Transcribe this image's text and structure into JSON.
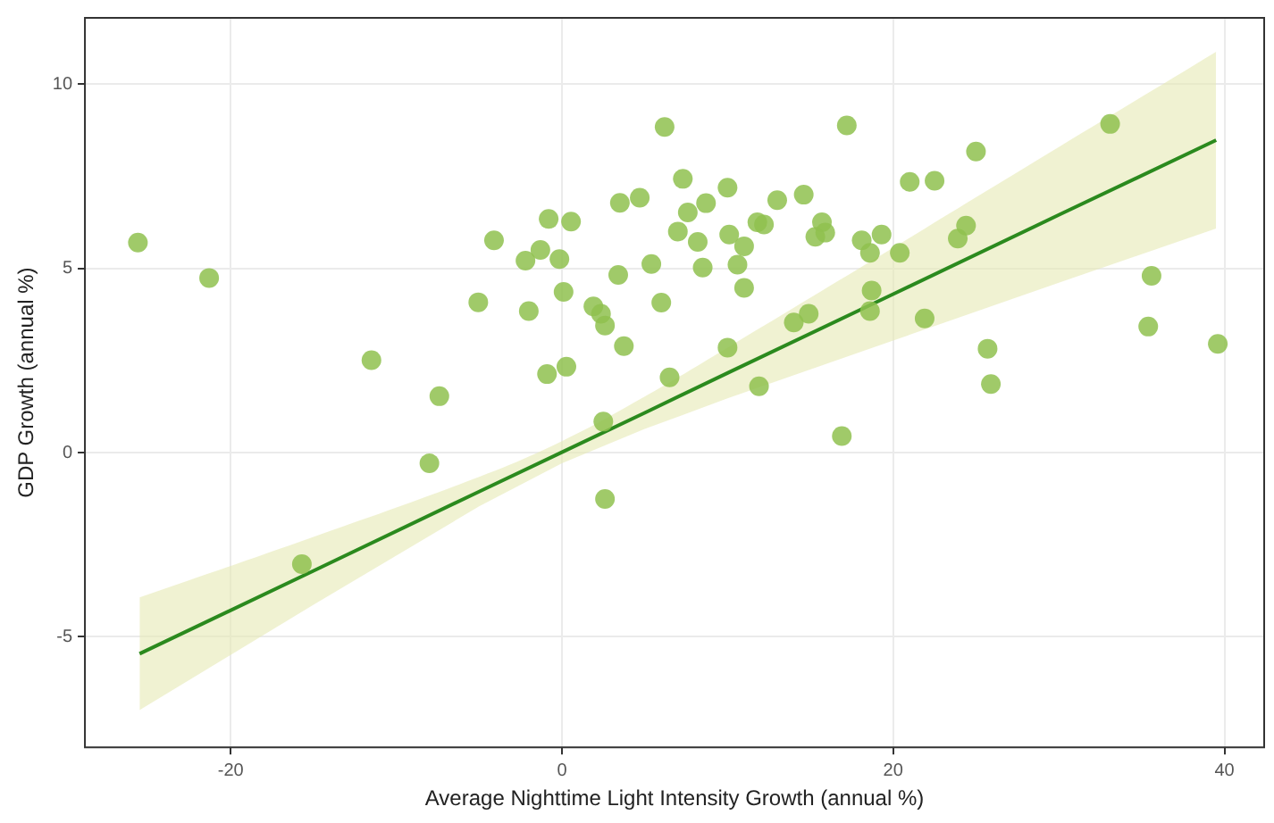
{
  "chart_data": {
    "type": "scatter",
    "xlabel": "Average Nighttime Light Intensity Growth (annual %)",
    "ylabel": "GDP Growth (annual %)",
    "xlim": [
      -28.8,
      42.4
    ],
    "ylim": [
      -8,
      11.8
    ],
    "xticks": [
      -20,
      0,
      20,
      40
    ],
    "yticks": [
      -5,
      0,
      5,
      10
    ],
    "grid": true,
    "legend": false,
    "marker": "circle",
    "series": [
      {
        "color": "#8fc14f",
        "x": [
          -25.6,
          -21.3,
          -11.5,
          -7.4,
          -8.0,
          -15.7,
          -4.1,
          -5.05,
          -2.2,
          -1.3,
          -0.8,
          0.55,
          -0.15,
          -2.0,
          0.1,
          -0.9,
          0.27,
          1.9,
          2.36,
          2.6,
          3.74,
          3.4,
          5.4,
          6.0,
          3.5,
          4.7,
          6.2,
          6.5,
          7.3,
          7.6,
          8.7,
          10.0,
          7.0,
          8.2,
          10.1,
          11.0,
          8.5,
          10.6,
          11.0,
          13.0,
          14.6,
          11.8,
          12.2,
          15.7,
          15.3,
          15.9,
          17.2,
          18.1,
          18.6,
          19.3,
          20.4,
          21.0,
          22.5,
          25.0,
          23.9,
          24.4,
          18.7,
          18.6,
          14.0,
          14.9,
          21.9,
          33.1,
          35.6,
          35.4,
          39.6,
          25.7,
          25.9,
          10.0,
          11.9,
          2.5,
          2.6,
          16.9
        ],
        "values": [
          5.7,
          4.74,
          2.51,
          1.53,
          -0.29,
          -3.03,
          5.76,
          4.08,
          5.21,
          5.5,
          6.34,
          6.27,
          5.25,
          3.84,
          4.36,
          2.13,
          2.33,
          3.97,
          3.77,
          3.45,
          2.89,
          4.82,
          5.12,
          4.07,
          6.78,
          6.92,
          8.84,
          2.04,
          7.43,
          6.52,
          6.77,
          7.19,
          6.0,
          5.72,
          5.92,
          5.6,
          5.02,
          5.1,
          4.47,
          6.85,
          7.0,
          6.25,
          6.19,
          6.25,
          5.86,
          5.97,
          8.88,
          5.76,
          5.42,
          5.92,
          5.42,
          7.35,
          7.38,
          8.17,
          5.81,
          6.16,
          4.4,
          3.84,
          3.53,
          3.77,
          3.64,
          8.92,
          4.8,
          3.42,
          2.95,
          2.82,
          1.86,
          2.85,
          1.8,
          0.84,
          -1.26,
          0.45
        ]
      },
      {
        "type": "line",
        "marker": "none",
        "color": "#2b8a1e",
        "x": [
          -25.5,
          -15,
          -5,
          0,
          5,
          10,
          20,
          30,
          39.5
        ],
        "values": [
          -5.46,
          -3.21,
          -1.06,
          0.01,
          1.08,
          2.16,
          4.3,
          6.45,
          8.48
        ],
        "lower": [
          -6.99,
          -4.13,
          -1.46,
          -0.29,
          0.64,
          1.47,
          3.04,
          4.61,
          6.08
        ],
        "upper": [
          -3.93,
          -2.29,
          -0.66,
          0.31,
          1.52,
          2.85,
          5.56,
          8.29,
          10.88
        ]
      }
    ]
  }
}
